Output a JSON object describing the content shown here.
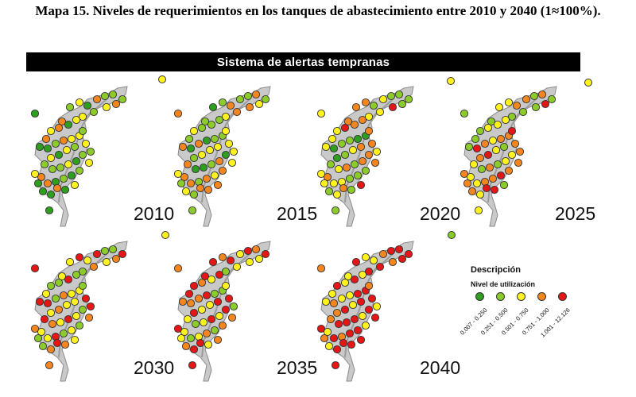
{
  "title": "Mapa 15. Niveles de requerimientos en los tanques de abastecimiento entre 2010 y 2040 (1≈100%).",
  "banner": "Sistema de alertas tempranas",
  "panels": [
    {
      "year": "2010",
      "seed": 3
    },
    {
      "year": "2015",
      "seed": 11
    },
    {
      "year": "2020",
      "seed": 19
    },
    {
      "year": "2025",
      "seed": 27
    },
    {
      "year": "2030",
      "seed": 35
    },
    {
      "year": "2035",
      "seed": 43
    },
    {
      "year": "2040",
      "seed": 51
    }
  ],
  "legend": {
    "title": "Descripción",
    "subtitle": "Nivel de utilización",
    "classes": [
      {
        "label": "0.007 - 0.250",
        "color": "#2e9e1f"
      },
      {
        "label": "0.251 - 0.500",
        "color": "#8bcc2a"
      },
      {
        "label": "0.501 - 0.750",
        "color": "#fff21f"
      },
      {
        "label": "0.751 - 1.000",
        "color": "#f5861f"
      },
      {
        "label": "1.001 - 12.126",
        "color": "#e51616"
      }
    ]
  },
  "colors": {
    "land": "#c9c9c9",
    "land_stroke": "#8a8a8a",
    "outline": "#333333"
  }
}
